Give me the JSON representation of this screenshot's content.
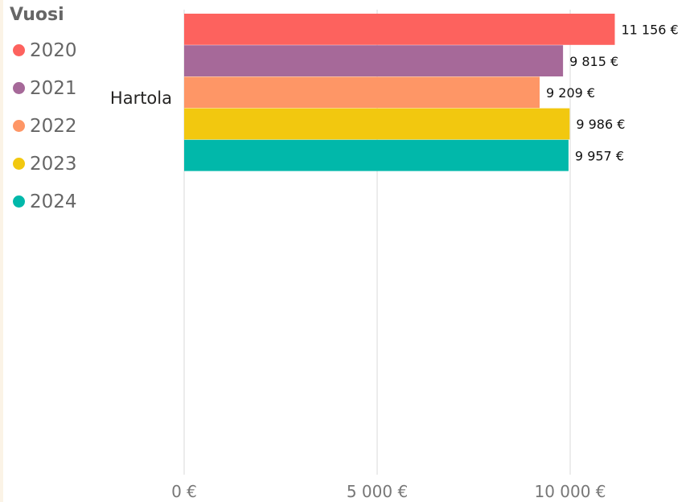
{
  "chart_data": {
    "type": "bar",
    "orientation": "horizontal",
    "categories": [
      "Hartola"
    ],
    "series": [
      {
        "name": "2020",
        "color": "#fd625e",
        "values": [
          11156
        ],
        "label": "11 156 €"
      },
      {
        "name": "2021",
        "color": "#a66999",
        "values": [
          9815
        ],
        "label": "9 815 €"
      },
      {
        "name": "2022",
        "color": "#fe9666",
        "values": [
          9209
        ],
        "label": "9 209 €"
      },
      {
        "name": "2023",
        "color": "#f2c80f",
        "values": [
          9986
        ],
        "label": "9 986 €"
      },
      {
        "name": "2024",
        "color": "#01b8aa",
        "values": [
          9957
        ],
        "label": "9 957 €"
      }
    ],
    "legend_title": "Vuosi",
    "legend_position": "top-left",
    "x_ticks": [
      {
        "value": 0,
        "label": "0 €"
      },
      {
        "value": 5000,
        "label": "5 000 €"
      },
      {
        "value": 10000,
        "label": "10 000 €"
      }
    ],
    "xlim": [
      0,
      10000
    ],
    "grid": true
  }
}
